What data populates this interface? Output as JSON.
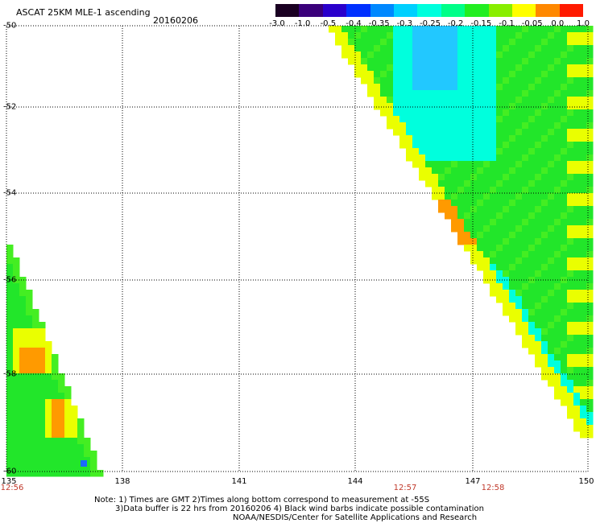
{
  "header": {
    "title": "ASCAT 25KM MLE-1 ascending",
    "date": "20160206"
  },
  "colorbar": {
    "labels": [
      "-3.0",
      "-1.0",
      "-0.5",
      "-0.4",
      "-0.35",
      "-0.3",
      "-0.25",
      "-0.2",
      "-0.15",
      "-0.1",
      "-0.05",
      "0.0",
      "1.0"
    ],
    "colors": [
      "#1a0022",
      "#3a007a",
      "#2a00cc",
      "#0030ff",
      "#0088ff",
      "#00d0ff",
      "#00ffdd",
      "#00ff88",
      "#22ee22",
      "#88ee00",
      "#ffff00",
      "#ff8800",
      "#ff1a00"
    ]
  },
  "map": {
    "lat_labels": [
      "-50",
      "-52",
      "-54",
      "-56",
      "-58",
      "-60"
    ],
    "lon_labels": [
      "135",
      "138",
      "141",
      "144",
      "147",
      "150"
    ],
    "time_labels": [
      "12:56",
      "12:57",
      "12:58"
    ],
    "swath_colors": {
      "green": "#22e62a",
      "lightgreen": "#44ee22",
      "cyan": "#00ffdd",
      "lightblue": "#22c8ff",
      "yellow": "#eaff00",
      "orange": "#ff9a00"
    }
  },
  "footer": {
    "note_line1": "Note: 1) Times are GMT 2)Times along bottom correspond to measurement at -55S",
    "note_line2": "3)Data buffer is 22 hrs from 20160206 4) Black wind barbs indicate possible contamination",
    "credit": "NOAA/NESDIS/Center for Satellite Applications and Research"
  }
}
